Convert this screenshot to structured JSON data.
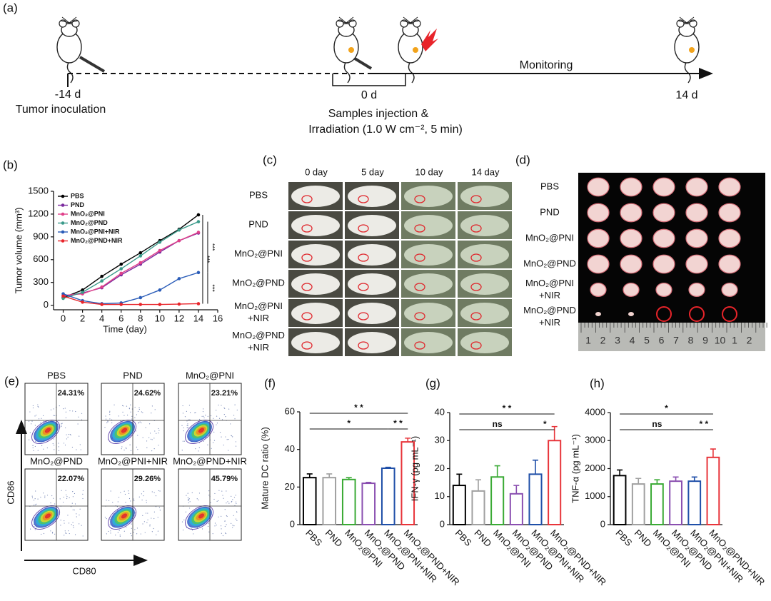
{
  "panel_labels": [
    "(a)",
    "(b)",
    "(c)",
    "(d)",
    "(e)",
    "(f)",
    "(g)",
    "(h)"
  ],
  "timeline": {
    "start": "-14 d",
    "start_event": "Tumor inoculation",
    "mid": "0 d",
    "mid_event_1": "Samples injection &",
    "mid_event_2": "Irradiation (1.0 W cm⁻², 5 min)",
    "phase": "Monitoring",
    "end": "14 d"
  },
  "chart_data": [
    {
      "type": "line",
      "x_label": "Time (day)",
      "y_label": "Tumor volume (mm³)",
      "x": [
        0,
        2,
        4,
        6,
        8,
        10,
        12,
        14
      ],
      "xlim": [
        -1,
        16
      ],
      "xticks": [
        0,
        2,
        4,
        6,
        8,
        10,
        12,
        14,
        16
      ],
      "ylim": [
        -60,
        1500
      ],
      "yticks": [
        0,
        300,
        600,
        900,
        1200,
        1500
      ],
      "legend": "upper left",
      "series": [
        {
          "name": "PBS",
          "color": "#000000",
          "values": [
            100,
            200,
            380,
            540,
            690,
            850,
            1000,
            1190
          ]
        },
        {
          "name": "PND",
          "color": "#7b2a9e",
          "values": [
            120,
            160,
            230,
            400,
            540,
            700,
            850,
            950
          ]
        },
        {
          "name": "MnO₂@PNI",
          "color": "#e0408a",
          "values": [
            130,
            150,
            240,
            420,
            560,
            720,
            850,
            960
          ]
        },
        {
          "name": "MnO₂@PND",
          "color": "#3a9a8a",
          "values": [
            90,
            170,
            320,
            480,
            650,
            830,
            990,
            1100
          ]
        },
        {
          "name": "MnO₂@PNI+NIR",
          "color": "#2a5cb8",
          "values": [
            150,
            60,
            20,
            30,
            100,
            200,
            350,
            430
          ]
        },
        {
          "name": "MnO₂@PND+NIR",
          "color": "#e8242a",
          "values": [
            120,
            40,
            10,
            10,
            10,
            10,
            15,
            20
          ]
        }
      ],
      "significance": [
        {
          "label": "***",
          "series": [
            "PBS",
            "MnO₂@PND+NIR"
          ]
        },
        {
          "label": "***",
          "series": [
            "MnO₂@PND",
            "MnO₂@PNI+NIR"
          ]
        },
        {
          "label": "***",
          "series": [
            "MnO₂@PNI+NIR",
            "MnO₂@PND+NIR"
          ]
        }
      ]
    },
    {
      "type": "bar",
      "y_label": "Mature DC ratio (%)",
      "categories": [
        "PBS",
        "PND",
        "MnO₂@PNI",
        "MnO₂@PND",
        "MnO₂@PNI+NIR",
        "MnO₂@PND+NIR"
      ],
      "values": [
        25,
        25,
        24,
        22,
        30,
        44
      ],
      "errors": [
        2,
        2,
        1,
        0.5,
        0.5,
        2
      ],
      "colors": [
        "#000000",
        "#a0a0a0",
        "#3aaa35",
        "#8a4fb0",
        "#1f4fa8",
        "#e8343a"
      ],
      "ylim": [
        0,
        60
      ],
      "yticks": [
        0,
        20,
        40,
        60
      ],
      "significance": [
        {
          "label": "* *",
          "groups": [
            "PBS",
            "MnO₂@PND+NIR"
          ]
        },
        {
          "label": "*",
          "groups": [
            "PBS",
            "MnO₂@PNI+NIR"
          ]
        },
        {
          "label": "* *",
          "groups": [
            "MnO₂@PNI+NIR",
            "MnO₂@PND+NIR"
          ]
        }
      ]
    },
    {
      "type": "bar",
      "y_label": "IFN-γ (pg mL⁻¹)",
      "categories": [
        "PBS",
        "PND",
        "MnO₂@PNI",
        "MnO₂@PND",
        "MnO₂@PNI+NIR",
        "MnO₂@PND+NIR"
      ],
      "values": [
        14,
        12,
        17,
        11,
        18,
        30
      ],
      "errors": [
        4,
        4,
        4,
        3,
        5,
        5
      ],
      "colors": [
        "#000000",
        "#a0a0a0",
        "#3aaa35",
        "#8a4fb0",
        "#1f4fa8",
        "#e8343a"
      ],
      "ylim": [
        0,
        40
      ],
      "yticks": [
        0,
        10,
        20,
        30,
        40
      ],
      "significance": [
        {
          "label": "* *",
          "groups": [
            "PBS",
            "MnO₂@PND+NIR"
          ]
        },
        {
          "label": "ns",
          "groups": [
            "PBS",
            "MnO₂@PNI+NIR"
          ]
        },
        {
          "label": "*",
          "groups": [
            "MnO₂@PNI+NIR",
            "MnO₂@PND+NIR"
          ]
        }
      ]
    },
    {
      "type": "bar",
      "y_label": "TNF-α (pg mL⁻¹)",
      "categories": [
        "PBS",
        "PND",
        "MnO₂@PNI",
        "MnO₂@PND",
        "MnO₂@PNI+NIR",
        "MnO₂@PND+NIR"
      ],
      "values": [
        1750,
        1450,
        1450,
        1550,
        1550,
        2400
      ],
      "errors": [
        200,
        200,
        150,
        150,
        150,
        300
      ],
      "colors": [
        "#000000",
        "#a0a0a0",
        "#3aaa35",
        "#8a4fb0",
        "#1f4fa8",
        "#e8343a"
      ],
      "ylim": [
        0,
        4000
      ],
      "yticks": [
        0,
        1000,
        2000,
        3000,
        4000
      ],
      "significance": [
        {
          "label": "*",
          "groups": [
            "PBS",
            "MnO₂@PND+NIR"
          ]
        },
        {
          "label": "ns",
          "groups": [
            "PBS",
            "MnO₂@PNI+NIR"
          ]
        },
        {
          "label": "* *",
          "groups": [
            "MnO₂@PNI+NIR",
            "MnO₂@PND+NIR"
          ]
        }
      ]
    }
  ],
  "photos": {
    "columns": [
      "0 day",
      "5 day",
      "10 day",
      "14 day"
    ],
    "rows": [
      [
        "PBS"
      ],
      [
        "PND"
      ],
      [
        "MnO₂@PNI"
      ],
      [
        "MnO₂@PND"
      ],
      [
        "MnO₂@PNI",
        "+NIR"
      ],
      [
        "MnO₂@PND",
        "+NIR"
      ]
    ]
  },
  "tumors": {
    "rows": [
      [
        "PBS"
      ],
      [
        "PND"
      ],
      [
        "MnO₂@PNI"
      ],
      [
        "MnO₂@PND"
      ],
      [
        "MnO₂@PNI",
        "+NIR"
      ],
      [
        "MnO₂@PND",
        "+NIR"
      ]
    ],
    "ruler": [
      "1",
      "2",
      "3",
      "4",
      "5",
      "6",
      "7",
      "8",
      "9",
      "10",
      "1",
      "2"
    ]
  },
  "flow": {
    "plots": [
      {
        "title": "PBS",
        "percent": "24.31%"
      },
      {
        "title": "PND",
        "percent": "24.62%"
      },
      {
        "title": "MnO₂@PNI",
        "percent": "23.21%"
      },
      {
        "title": "MnO₂@PND",
        "percent": "22.07%"
      },
      {
        "title": "MnO₂@PNI+NIR",
        "percent": "29.26%"
      },
      {
        "title": "MnO₂@PND+NIR",
        "percent": "45.79%"
      }
    ],
    "y_label": "CD86",
    "x_label": "CD80"
  }
}
